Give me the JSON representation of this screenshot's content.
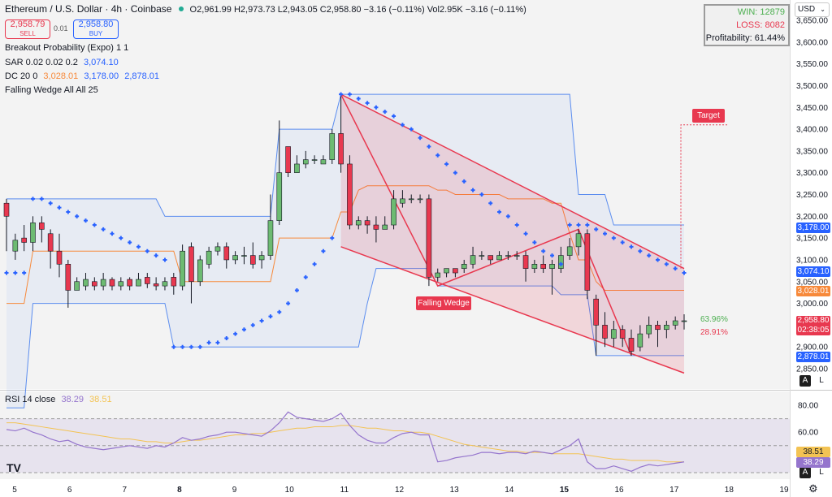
{
  "header": {
    "title": "Ethereum / U.S. Dollar · 4h · Coinbase",
    "ohlc": "O2,961.99 H2,973.73 L2,943.05 C2,958.80 −3.16 (−0.11%)",
    "vol": "Vol2.95K −3.16 (−0.11%)",
    "sell_price": "2,958.79",
    "sell_label": "SELL",
    "spread": "0.01",
    "buy_price": "2,958.80",
    "buy_label": "BUY"
  },
  "indicators": {
    "breakout": "Breakout Probability (Expo) 1 1",
    "sar_label": "SAR 0.02 0.02 0.2",
    "sar_value": "3,074.10",
    "dc_label": "DC 20 0",
    "dc_mid": "3,028.01",
    "dc_upper": "3,178.00",
    "dc_lower": "2,878.01",
    "wedge": "Falling Wedge All All 25"
  },
  "stats": {
    "win": "WIN: 12879",
    "loss": "LOSS: 8082",
    "profitability": "Profitability: 61.44%"
  },
  "currency": "USD",
  "annotations": {
    "target": "Target",
    "falling_wedge": "Falling Wedge",
    "prob_up": "63.96%",
    "prob_down": "28.91%"
  },
  "price_tags": {
    "upper": "3,178.00",
    "sar": "3,074.10",
    "mid": "3,028.01",
    "last": "2,958.80",
    "countdown": "02:38:05",
    "lower": "2,878.01"
  },
  "rsi": {
    "label": "RSI 14 close",
    "value": "38.29",
    "ma": "38.51",
    "ticks": [
      "80.00",
      "60.00"
    ]
  },
  "x_ticks": [
    "5",
    "6",
    "7",
    "8",
    "9",
    "10",
    "11",
    "12",
    "13",
    "14",
    "15",
    "16",
    "17",
    "18",
    "19"
  ],
  "y_ticks": [
    "3,650.00",
    "3,600.00",
    "3,550.00",
    "3,500.00",
    "3,450.00",
    "3,400.00",
    "3,350.00",
    "3,300.00",
    "3,250.00",
    "3,200.00",
    "3,150.00",
    "3,100.00",
    "3,050.00",
    "3,000.00",
    "2,950.00",
    "2,900.00",
    "2,850.00"
  ],
  "colors": {
    "up": "#6dbb72",
    "down": "#e8384f",
    "sar": "#2962ff",
    "dc_band": "#5b8def",
    "dc_mid": "#f7893a",
    "wedge": "#e8384f",
    "rsi": "#9575cd",
    "rsi_ma": "#f3c353"
  },
  "chart_data": [
    {
      "type": "candlestick",
      "title": "Ethereum / U.S. Dollar · 4h · Coinbase",
      "x": [
        "5",
        "6",
        "7",
        "8",
        "9",
        "10",
        "11",
        "12",
        "13",
        "14",
        "15",
        "16",
        "17",
        "18",
        "19"
      ],
      "ylim": [
        2820,
        3660
      ],
      "candles": [
        [
          3230,
          3200,
          3120,
          3240
        ],
        [
          3120,
          3145,
          3100,
          3160
        ],
        [
          3150,
          3140,
          3120,
          3180
        ],
        [
          3140,
          3185,
          3120,
          3200
        ],
        [
          3185,
          3170,
          3140,
          3200
        ],
        [
          3160,
          3120,
          3080,
          3170
        ],
        [
          3120,
          3090,
          3060,
          3160
        ],
        [
          3090,
          3030,
          2990,
          3100
        ],
        [
          3030,
          3050,
          3030,
          3060
        ],
        [
          3040,
          3055,
          3030,
          3070
        ],
        [
          3050,
          3040,
          3030,
          3060
        ],
        [
          3040,
          3055,
          3030,
          3070
        ],
        [
          3055,
          3040,
          3030,
          3060
        ],
        [
          3040,
          3050,
          3030,
          3060
        ],
        [
          3055,
          3040,
          3030,
          3060
        ],
        [
          3040,
          3055,
          3040,
          3070
        ],
        [
          3060,
          3045,
          3035,
          3070
        ],
        [
          3045,
          3040,
          3030,
          3060
        ],
        [
          3040,
          3050,
          3030,
          3060
        ],
        [
          3060,
          3040,
          3020,
          3070
        ],
        [
          3040,
          3120,
          3030,
          3135
        ],
        [
          3130,
          3050,
          3000,
          3140
        ],
        [
          3050,
          3100,
          3040,
          3110
        ],
        [
          3090,
          3120,
          3080,
          3130
        ],
        [
          3120,
          3130,
          3110,
          3140
        ],
        [
          3130,
          3100,
          3080,
          3140
        ],
        [
          3100,
          3110,
          3090,
          3120
        ],
        [
          3110,
          3110,
          3090,
          3130
        ],
        [
          3110,
          3090,
          3080,
          3140
        ],
        [
          3100,
          3110,
          3080,
          3120
        ],
        [
          3110,
          3190,
          3100,
          3250
        ],
        [
          3190,
          3300,
          3180,
          3420
        ],
        [
          3360,
          3300,
          3290,
          3360
        ],
        [
          3300,
          3320,
          3300,
          3340
        ],
        [
          3320,
          3330,
          3310,
          3350
        ],
        [
          3330,
          3330,
          3320,
          3340
        ],
        [
          3320,
          3330,
          3320,
          3340
        ],
        [
          3330,
          3390,
          3320,
          3400
        ],
        [
          3390,
          3320,
          3300,
          3480
        ],
        [
          3320,
          3180,
          3170,
          3340
        ],
        [
          3180,
          3190,
          3170,
          3200
        ],
        [
          3190,
          3180,
          3160,
          3200
        ],
        [
          3180,
          3170,
          3140,
          3200
        ],
        [
          3170,
          3180,
          3170,
          3200
        ],
        [
          3180,
          3240,
          3170,
          3260
        ],
        [
          3230,
          3240,
          3220,
          3260
        ],
        [
          3240,
          3240,
          3230,
          3250
        ],
        [
          3240,
          3240,
          3230,
          3250
        ],
        [
          3240,
          3060,
          3040,
          3250
        ],
        [
          3060,
          3070,
          3050,
          3080
        ],
        [
          3070,
          3080,
          3060,
          3080
        ],
        [
          3080,
          3070,
          3060,
          3080
        ],
        [
          3080,
          3090,
          3070,
          3100
        ],
        [
          3090,
          3110,
          3080,
          3130
        ],
        [
          3110,
          3110,
          3100,
          3120
        ],
        [
          3110,
          3100,
          3090,
          3110
        ],
        [
          3100,
          3110,
          3100,
          3120
        ],
        [
          3110,
          3110,
          3100,
          3120
        ],
        [
          3110,
          3110,
          3100,
          3120
        ],
        [
          3110,
          3080,
          3050,
          3120
        ],
        [
          3080,
          3090,
          3070,
          3100
        ],
        [
          3090,
          3080,
          3070,
          3110
        ],
        [
          3080,
          3090,
          3020,
          3100
        ],
        [
          3080,
          3110,
          3070,
          3130
        ],
        [
          3110,
          3130,
          3100,
          3150
        ],
        [
          3130,
          3160,
          3110,
          3170
        ],
        [
          3160,
          3030,
          3010,
          3170
        ],
        [
          3010,
          2950,
          2880,
          3020
        ],
        [
          2950,
          2920,
          2900,
          2980
        ],
        [
          2920,
          2940,
          2900,
          2960
        ],
        [
          2940,
          2920,
          2900,
          2950
        ],
        [
          2920,
          2890,
          2880,
          2940
        ],
        [
          2900,
          2930,
          2890,
          2950
        ],
        [
          2930,
          2950,
          2920,
          2970
        ],
        [
          2950,
          2940,
          2900,
          2960
        ],
        [
          2940,
          2950,
          2920,
          2960
        ],
        [
          2950,
          2960,
          2940,
          2970
        ],
        [
          2960,
          2960,
          2940,
          2975
        ]
      ],
      "donchian_upper": [
        3240,
        3240,
        3240,
        3240,
        3240,
        3240,
        3240,
        3240,
        3240,
        3240,
        3240,
        3240,
        3240,
        3240,
        3240,
        3240,
        3240,
        3240,
        3200,
        3200,
        3200,
        3200,
        3200,
        3200,
        3200,
        3200,
        3200,
        3200,
        3200,
        3200,
        3200,
        3400,
        3400,
        3400,
        3400,
        3400,
        3400,
        3400,
        3480,
        3480,
        3480,
        3480,
        3480,
        3480,
        3480,
        3480,
        3480,
        3480,
        3480,
        3480,
        3480,
        3480,
        3480,
        3480,
        3480,
        3480,
        3480,
        3480,
        3480,
        3480,
        3480,
        3480,
        3480,
        3480,
        3480,
        3250,
        3250,
        3250,
        3250,
        3180,
        3180,
        3180,
        3180,
        3180,
        3180,
        3180,
        3180,
        3180
      ],
      "donchian_mid": [
        3000,
        3000,
        3000,
        3120,
        3120,
        3120,
        3120,
        3120,
        3120,
        3120,
        3120,
        3120,
        3120,
        3120,
        3120,
        3120,
        3120,
        3120,
        3120,
        3120,
        3050,
        3050,
        3050,
        3050,
        3050,
        3050,
        3050,
        3050,
        3050,
        3050,
        3050,
        3150,
        3150,
        3150,
        3150,
        3150,
        3150,
        3150,
        3210,
        3210,
        3260,
        3270,
        3270,
        3270,
        3270,
        3270,
        3270,
        3270,
        3270,
        3260,
        3260,
        3250,
        3250,
        3250,
        3250,
        3250,
        3250,
        3240,
        3240,
        3240,
        3240,
        3240,
        3230,
        3230,
        3160,
        3100,
        3100,
        3050,
        3030,
        3030,
        3030,
        3030,
        3030,
        3030,
        3030,
        3030,
        3030,
        3030
      ],
      "donchian_lower": [
        2760,
        2760,
        2760,
        3000,
        3000,
        3000,
        3000,
        3000,
        3000,
        3000,
        3000,
        3000,
        3000,
        3000,
        3000,
        3000,
        3000,
        3000,
        3000,
        2900,
        2900,
        2900,
        2900,
        2900,
        2900,
        2900,
        2900,
        2900,
        2900,
        2900,
        2900,
        2900,
        2900,
        2900,
        2900,
        2900,
        2900,
        2900,
        2900,
        2900,
        2900,
        3000,
        3080,
        3080,
        3080,
        3080,
        3080,
        3080,
        3080,
        3040,
        3040,
        3040,
        3040,
        3040,
        3040,
        3040,
        3040,
        3040,
        3040,
        3040,
        3040,
        3040,
        3040,
        3020,
        3020,
        3020,
        3020,
        2880,
        2880,
        2880,
        2880,
        2880,
        2880,
        2880,
        2880,
        2880,
        2880,
        2880
      ],
      "sar": [
        3070,
        3070,
        3070,
        3240,
        3240,
        3230,
        3220,
        3210,
        3200,
        3190,
        3180,
        3170,
        3160,
        3150,
        3140,
        3130,
        3120,
        3110,
        3100,
        2900,
        2900,
        2900,
        2900,
        2910,
        2910,
        2920,
        2930,
        2940,
        2950,
        2960,
        2970,
        2980,
        3000,
        3030,
        3060,
        3090,
        3120,
        3150,
        3480,
        3480,
        3470,
        3460,
        3450,
        3440,
        3430,
        3410,
        3400,
        3380,
        3360,
        3340,
        3320,
        3300,
        3280,
        3260,
        3250,
        3230,
        3210,
        3200,
        3180,
        3160,
        3140,
        3120,
        3110,
        3090,
        3180,
        3180,
        3180,
        3170,
        3160,
        3150,
        3140,
        3130,
        3120,
        3110,
        3100,
        3090,
        3080,
        3070
      ],
      "falling_wedge": {
        "upper": [
          [
            3480,
            3080
          ],
          [
            3480,
            3080
          ]
        ],
        "lower": [
          [
            3130,
            2840
          ],
          [
            3130,
            2840
          ]
        ]
      },
      "target": 3410
    },
    {
      "type": "line",
      "series": [
        {
          "name": "RSI 14 close",
          "values": [
            62,
            61,
            63,
            60,
            58,
            55,
            53,
            54,
            51,
            49,
            48,
            47,
            48,
            49,
            50,
            49,
            48,
            50,
            49,
            52,
            56,
            54,
            55,
            57,
            58,
            60,
            60,
            59,
            58,
            57,
            61,
            67,
            75,
            71,
            70,
            69,
            68,
            70,
            74,
            65,
            58,
            54,
            52,
            52,
            56,
            59,
            60,
            58,
            58,
            38,
            39,
            41,
            42,
            43,
            45,
            45,
            44,
            45,
            45,
            44,
            46,
            45,
            44,
            47,
            50,
            55,
            38,
            33,
            33,
            35,
            33,
            31,
            34,
            36,
            35,
            36,
            37,
            38
          ]
        },
        {
          "name": "MA",
          "values": [
            67,
            67,
            66,
            65,
            64,
            63,
            62,
            61,
            60,
            59,
            58,
            57,
            56,
            55,
            55,
            54,
            53,
            53,
            52,
            52,
            53,
            54,
            54,
            55,
            56,
            57,
            58,
            58,
            59,
            59,
            60,
            61,
            62,
            63,
            63,
            64,
            64,
            64,
            65,
            65,
            64,
            63,
            63,
            62,
            61,
            61,
            60,
            60,
            59,
            57,
            55,
            53,
            51,
            50,
            49,
            48,
            47,
            46,
            46,
            45,
            45,
            45,
            44,
            44,
            44,
            44,
            43,
            42,
            41,
            40,
            40,
            39,
            39,
            39,
            39,
            38,
            38,
            38
          ]
        }
      ],
      "ylim": [
        20,
        90
      ]
    }
  ]
}
